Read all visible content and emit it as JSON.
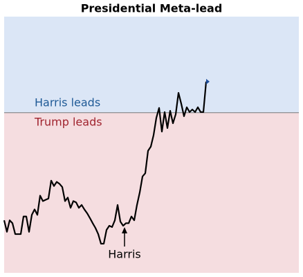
{
  "chart_data": {
    "type": "line",
    "title": "Presidential Meta-lead",
    "annotations": {
      "above": "Harris leads",
      "below": "Trump leads",
      "arrow": "Harris"
    },
    "x": [
      0,
      1,
      2,
      3,
      4,
      5,
      6,
      7,
      8,
      9,
      10,
      11,
      12,
      13,
      14,
      15,
      16,
      17,
      18,
      19,
      20,
      21,
      22,
      23,
      24,
      25,
      26,
      27,
      28,
      29,
      30,
      31,
      32,
      33,
      34,
      35,
      36,
      37,
      38,
      39,
      40,
      41,
      42,
      43,
      44,
      45,
      46,
      47,
      48,
      49,
      50,
      51,
      52,
      53,
      54,
      55,
      56,
      57,
      58,
      59,
      60,
      61,
      62,
      63,
      64,
      65,
      66,
      67,
      68,
      69,
      70,
      71,
      72,
      73
    ],
    "values": [
      -3.36,
      -3.72,
      -3.36,
      -3.45,
      -3.79,
      -3.79,
      -3.79,
      -3.24,
      -3.24,
      -3.72,
      -3.19,
      -3.02,
      -3.19,
      -2.59,
      -2.76,
      -2.72,
      -2.68,
      -2.12,
      -2.29,
      -2.16,
      -2.22,
      -2.32,
      -2.76,
      -2.65,
      -2.97,
      -2.76,
      -2.8,
      -2.97,
      -2.88,
      -3.02,
      -3.14,
      -3.29,
      -3.45,
      -3.6,
      -3.79,
      -4.09,
      -4.09,
      -3.66,
      -3.53,
      -3.57,
      -3.36,
      -2.88,
      -3.4,
      -3.53,
      -3.45,
      -3.45,
      -3.24,
      -3.36,
      -2.88,
      -2.49,
      -1.99,
      -1.89,
      -1.19,
      -1.06,
      -0.7,
      -0.16,
      0.15,
      -0.59,
      0.02,
      -0.48,
      0.06,
      -0.33,
      -0.05,
      0.62,
      0.28,
      -0.11,
      0.17,
      0.02,
      0.1,
      0.02,
      0.17,
      0.02,
      0.02,
      0.97
    ],
    "color": "#000000",
    "marker_color": "#1f4e9a",
    "above_color": "#dbe6f6",
    "below_color": "#f5dde0",
    "above_text_color": "#1f5a96",
    "below_text_color": "#a0232e",
    "xlim": [
      0,
      106.5
    ],
    "ylim": [
      -5,
      3
    ]
  }
}
